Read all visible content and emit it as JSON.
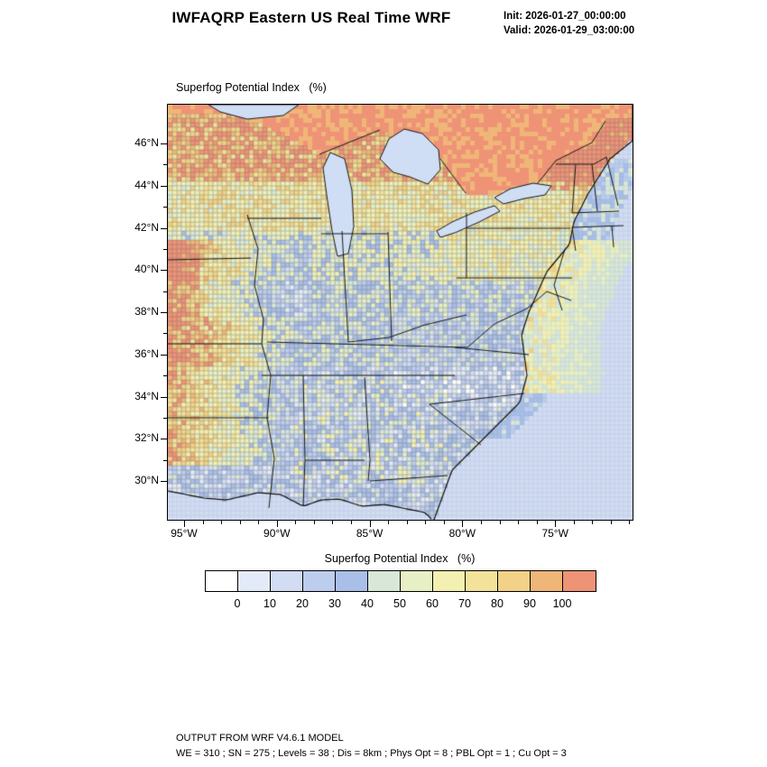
{
  "header": {
    "title": "IWFAQRP Eastern US Real Time WRF",
    "init_line": "Init: 2026-01-27_00:00:00",
    "valid_line": "Valid: 2026-01-29_03:00:00"
  },
  "map": {
    "field_label": "Superfog Potential Index   (%)",
    "lat_ticks": [
      "46°N",
      "44°N",
      "42°N",
      "40°N",
      "38°N",
      "36°N",
      "34°N",
      "32°N",
      "30°N"
    ],
    "lon_ticks": [
      "95°W",
      "90°W",
      "85°W",
      "80°W",
      "75°W"
    ]
  },
  "colorbar": {
    "title": "Superfog Potential Index   (%)",
    "tick_labels": [
      "0",
      "10",
      "20",
      "30",
      "40",
      "50",
      "60",
      "70",
      "80",
      "90",
      "100"
    ],
    "colors": [
      "#ffffff",
      "#e4ebf8",
      "#d2ddf3",
      "#bccdee",
      "#a9bfe8",
      "#d8e7d8",
      "#e7efc5",
      "#f4f0b2",
      "#f3e29a",
      "#f1d287",
      "#efb678",
      "#ef9377"
    ]
  },
  "footer": {
    "line1": "OUTPUT FROM WRF V4.6.1 MODEL",
    "line2": "WE = 310 ; SN = 275 ; Levels = 38 ; Dis = 8km ; Phys Opt = 8 ; PBL Opt = 1 ; Cu Opt = 3"
  }
}
